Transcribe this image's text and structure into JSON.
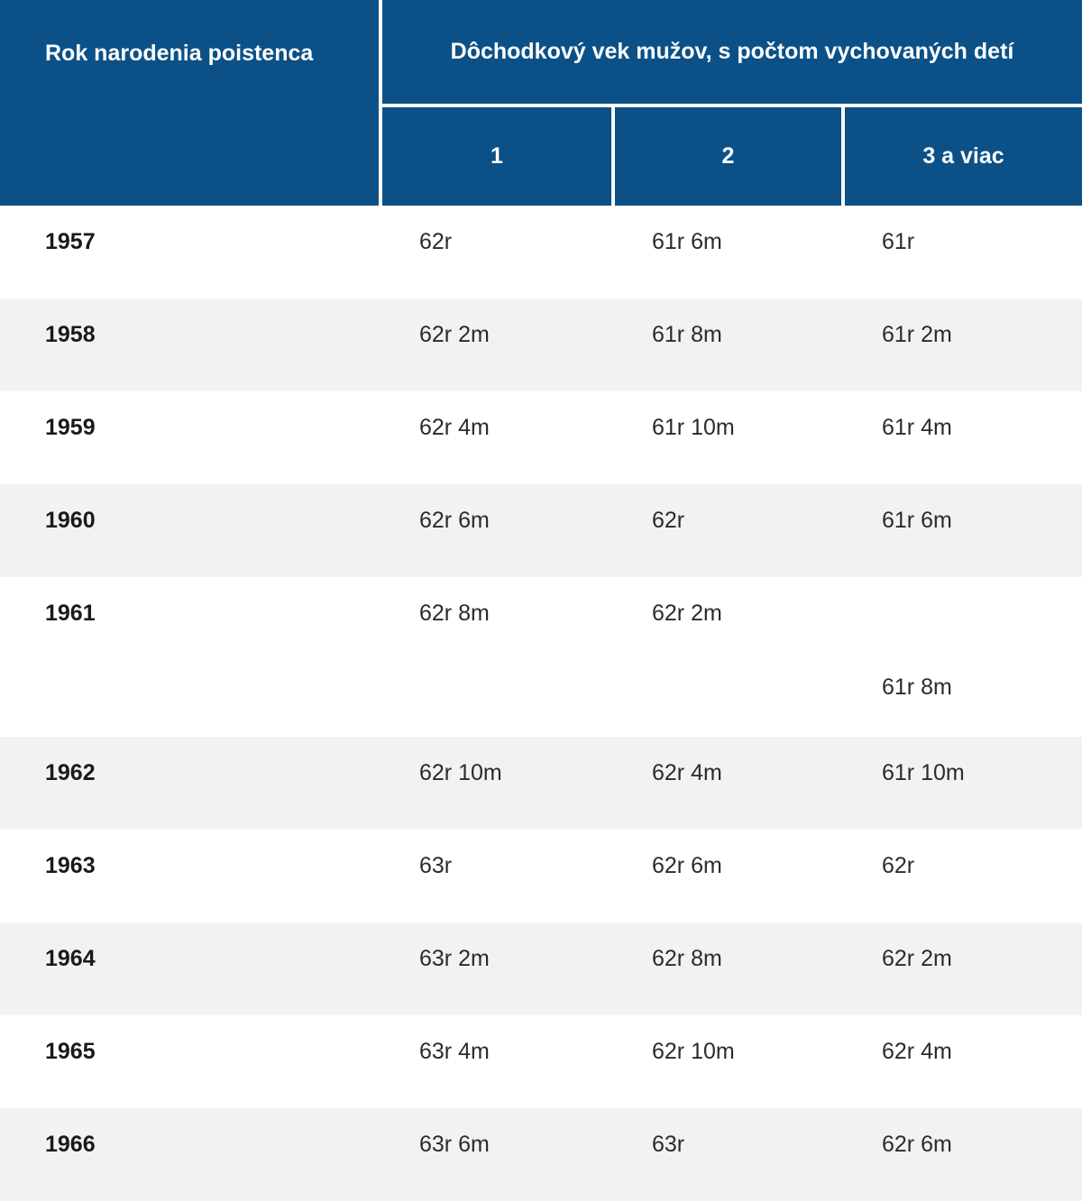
{
  "chart_data": {
    "type": "table",
    "group_header": "Dôchodkový vek mužov, s počtom vychovaných detí",
    "row_header": "Rok narodenia poistenca",
    "columns": [
      "1",
      "2",
      "3 a viac"
    ],
    "rows": [
      {
        "year": "1957",
        "values": [
          "62r",
          "61r 6m",
          "61r"
        ]
      },
      {
        "year": "1958",
        "values": [
          "62r 2m",
          "61r 8m",
          "61r 2m"
        ]
      },
      {
        "year": "1959",
        "values": [
          "62r 4m",
          "61r 10m",
          "61r 4m"
        ]
      },
      {
        "year": "1960",
        "values": [
          "62r 6m",
          "62r",
          "61r 6m"
        ]
      },
      {
        "year": "1961",
        "values": [
          "62r 8m",
          "62r 2m",
          "61r 8m"
        ],
        "tall": true,
        "offset_last": true
      },
      {
        "year": "1962",
        "values": [
          "62r 10m",
          "62r 4m",
          "61r 10m"
        ]
      },
      {
        "year": "1963",
        "values": [
          "63r",
          "62r 6m",
          "62r"
        ]
      },
      {
        "year": "1964",
        "values": [
          "63r 2m",
          "62r 8m",
          "62r 2m"
        ]
      },
      {
        "year": "1965",
        "values": [
          "63r 4m",
          "62r 10m",
          "62r 4m"
        ]
      },
      {
        "year": "1966",
        "values": [
          "63r 6m",
          "63r",
          "62r 6m"
        ]
      }
    ],
    "layout": {
      "header_bg": "#0b5187",
      "header_text_color": "#ffffff",
      "alt_row_bg": "#f2f2f2",
      "body_text_color": "#2b2b2b",
      "grid": "off"
    }
  }
}
